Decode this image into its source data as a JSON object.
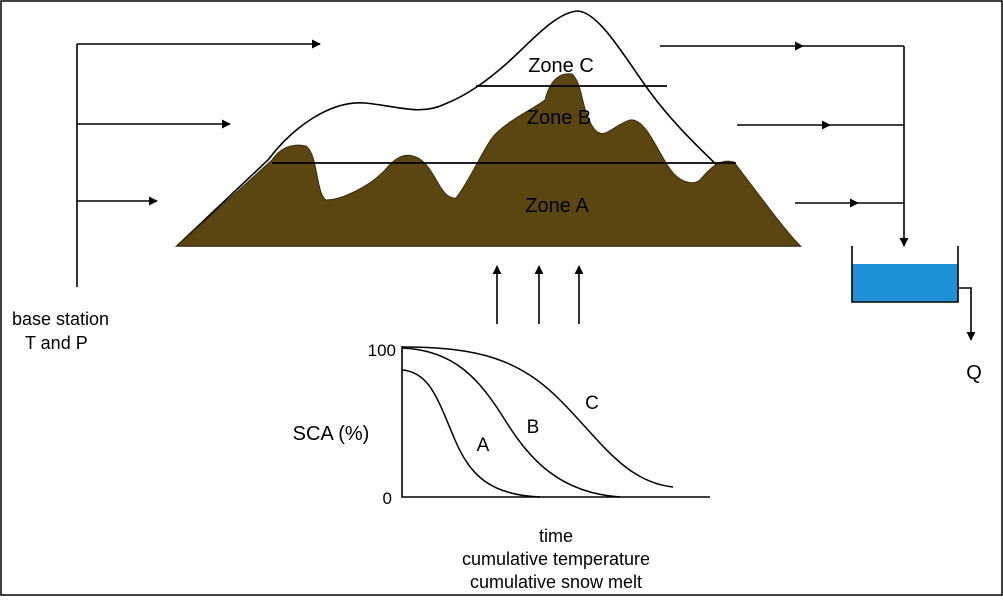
{
  "zones": {
    "c": "Zone C",
    "b": "Zone B",
    "a": "Zone A"
  },
  "base_station": {
    "line1": "base station",
    "line2": "T and P"
  },
  "outflow": "Q",
  "sca_chart": {
    "ylabel": "SCA (%)",
    "y_top": "100",
    "y_bottom": "0",
    "xlabel": [
      "time",
      "cumulative temperature",
      "cumulative snow melt"
    ],
    "curves": [
      "A",
      "B",
      "C"
    ]
  },
  "colors": {
    "snow_free_ground": "#5b4511",
    "snow": "#ffffff",
    "reservoir_water": "#1e90d6"
  }
}
